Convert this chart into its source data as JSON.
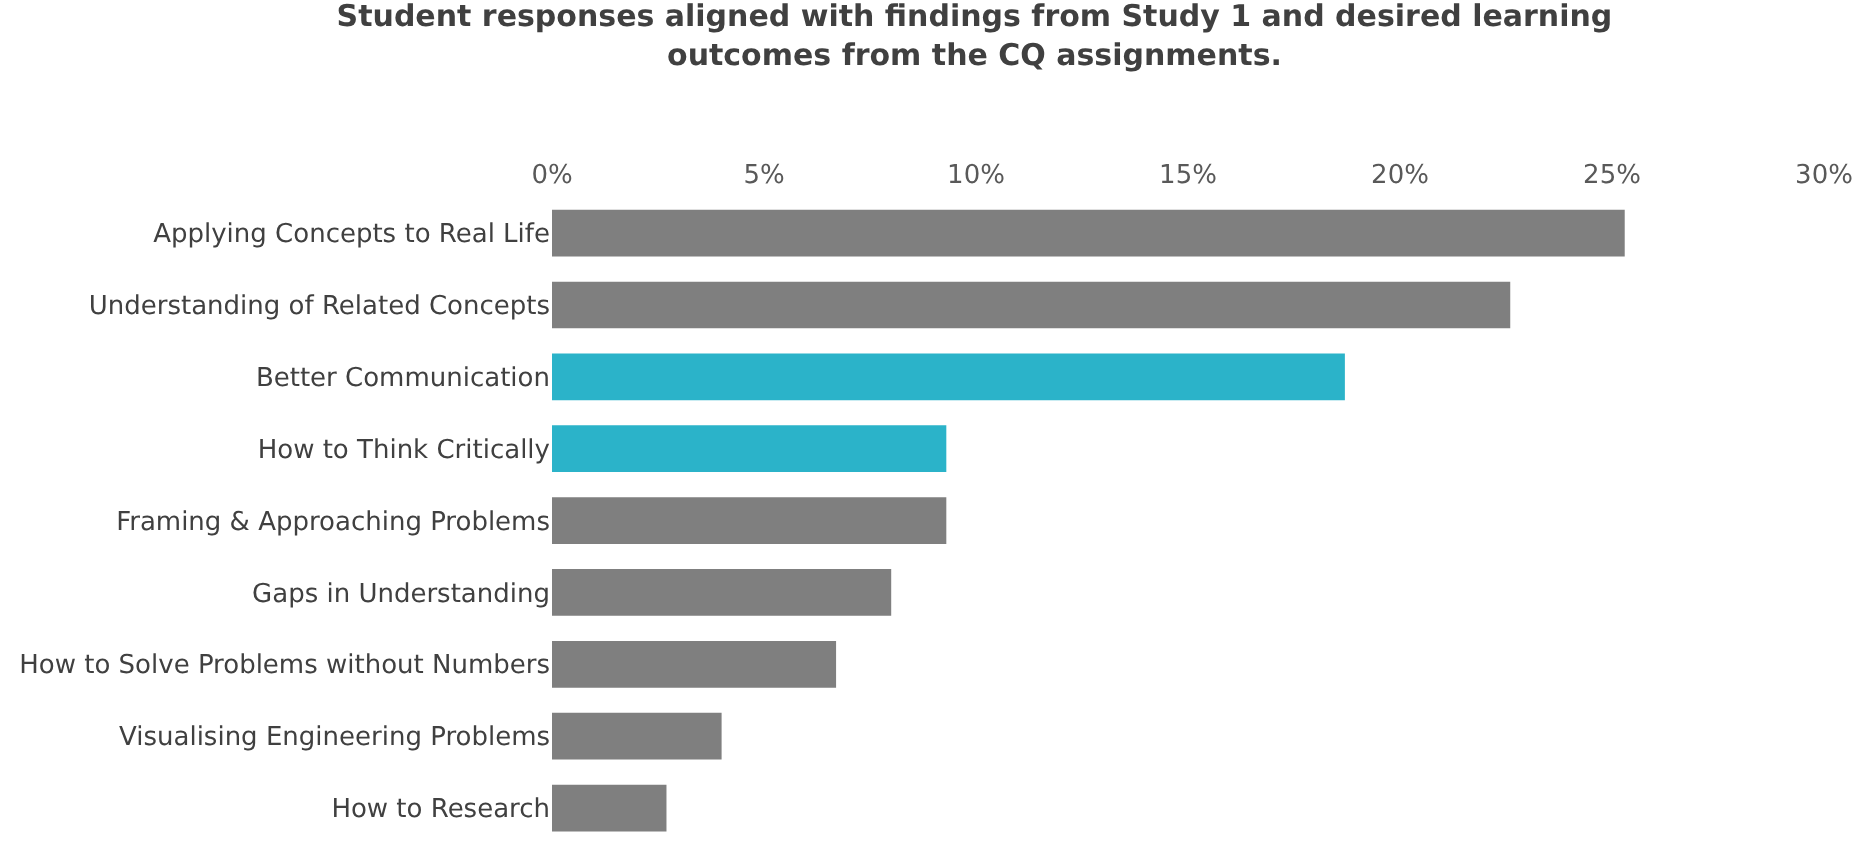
{
  "chart_data": {
    "type": "bar",
    "orientation": "horizontal",
    "title": "Student responses aligned with findings from Study 1 and desired learning outcomes from the CQ assignments.",
    "categories": [
      "Applying Concepts to Real Life",
      "Understanding of Related Concepts",
      "Better Communication",
      "How to Think Critically",
      "Framing & Approaching Problems",
      "Gaps in Understanding",
      "How to Solve Problems without Numbers",
      "Visualising Engineering Problems",
      "How to Research"
    ],
    "values": [
      25.3,
      22.6,
      18.7,
      9.3,
      9.3,
      8.0,
      6.7,
      4.0,
      2.7
    ],
    "colors": [
      "#7f7f7f",
      "#7f7f7f",
      "#2bb3c9",
      "#2bb3c9",
      "#7f7f7f",
      "#7f7f7f",
      "#7f7f7f",
      "#7f7f7f",
      "#7f7f7f"
    ],
    "xlim": [
      0,
      30
    ],
    "xticks": [
      {
        "value": 0,
        "label": "0%"
      },
      {
        "value": 5,
        "label": "5%"
      },
      {
        "value": 10,
        "label": "10%"
      },
      {
        "value": 15,
        "label": "15%"
      },
      {
        "value": 20,
        "label": "20%"
      },
      {
        "value": 25,
        "label": "25%"
      },
      {
        "value": 30,
        "label": "30%"
      }
    ],
    "marker": "none"
  }
}
